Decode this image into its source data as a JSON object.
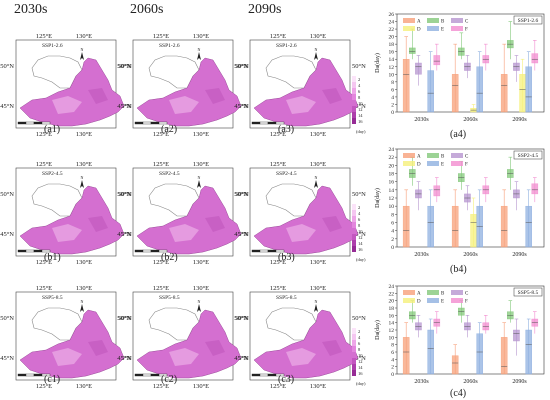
{
  "column_headers": [
    "2030s",
    "2060s",
    "2090s"
  ],
  "maps": {
    "lon_labels": [
      "125°E",
      "130°E"
    ],
    "lat_labels": [
      "50°N",
      "45°N"
    ],
    "north_symbol": "N",
    "legend_values": [
      "2",
      "4",
      "6",
      "8",
      "10",
      "12",
      "14",
      "16"
    ],
    "legend_unit": "(day)",
    "rows": [
      {
        "scenario": "SSP1-2.6",
        "captions": [
          "(a1)",
          "(a2)",
          "(a3)"
        ]
      },
      {
        "scenario": "SSP2-4.5",
        "captions": [
          "(b1)",
          "(b2)",
          "(b3)"
        ]
      },
      {
        "scenario": "SSP5-8.5",
        "captions": [
          "(c1)",
          "(c2)",
          "(c3)"
        ]
      }
    ]
  },
  "colors": {
    "A": "#f7a07a",
    "B": "#83c87a",
    "C": "#b695cf",
    "D": "#f5f07a",
    "E": "#8fb0e0",
    "F": "#f28ccf",
    "map_fill": "#d46fd0",
    "map_light": "#e9a6e4"
  },
  "chart_data": [
    {
      "type": "box",
      "caption": "(a4)",
      "scenario": "SSP1-2.6",
      "ylabel": "Da(day)",
      "ylim": [
        0,
        26
      ],
      "yticks": [
        0,
        2,
        4,
        6,
        8,
        10,
        12,
        14,
        16,
        18,
        20,
        22,
        24,
        26
      ],
      "categories": [
        "2030s",
        "2060s",
        "2090s"
      ],
      "legend_labels": [
        "A",
        "B",
        "C",
        "D",
        "E",
        "F"
      ],
      "series": [
        {
          "name": "A",
          "boxes": [
            [
              0,
              0,
              10,
              14,
              20
            ],
            [
              0,
              0,
              7,
              10,
              18
            ],
            [
              0,
              0,
              7,
              10,
              18
            ]
          ]
        },
        {
          "name": "B",
          "boxes": [
            [
              14,
              15.5,
              16,
              17,
              22
            ],
            [
              14,
              15,
              16,
              17,
              21
            ],
            [
              14,
              17,
              18,
              19,
              24
            ]
          ]
        },
        {
          "name": "C",
          "boxes": [
            [
              7,
              10,
              12,
              13,
              15
            ],
            [
              9,
              11,
              12,
              13,
              15
            ],
            [
              8,
              11,
              12,
              13,
              15
            ]
          ]
        },
        {
          "name": "D",
          "boxes": [
            [
              0,
              0,
              0,
              0,
              0
            ],
            [
              0,
              0,
              0.5,
              1,
              2
            ],
            [
              0,
              0,
              6,
              10,
              14
            ]
          ]
        },
        {
          "name": "E",
          "boxes": [
            [
              0,
              0,
              5,
              11,
              16
            ],
            [
              0,
              0,
              5,
              12,
              16
            ],
            [
              0,
              0,
              4,
              12,
              16
            ]
          ]
        },
        {
          "name": "F",
          "boxes": [
            [
              11,
              12.5,
              13.5,
              15,
              18
            ],
            [
              11,
              13,
              14,
              15,
              18
            ],
            [
              11,
              13,
              14,
              15.5,
              19
            ]
          ]
        }
      ]
    },
    {
      "type": "box",
      "caption": "(b4)",
      "scenario": "SSP2-4.5",
      "ylabel": "Da(day)",
      "ylim": [
        0,
        24
      ],
      "yticks": [
        0,
        2,
        4,
        6,
        8,
        10,
        12,
        14,
        16,
        18,
        20,
        22,
        24
      ],
      "categories": [
        "2030s",
        "2060s",
        "2090s"
      ],
      "legend_labels": [
        "A",
        "B",
        "C",
        "D",
        "E",
        "F"
      ],
      "series": [
        {
          "name": "A",
          "boxes": [
            [
              0,
              0,
              4,
              10,
              14
            ],
            [
              0,
              0,
              4,
              10,
              14
            ],
            [
              0,
              0,
              4,
              10,
              14
            ]
          ]
        },
        {
          "name": "B",
          "boxes": [
            [
              15,
              17,
              18,
              19,
              22
            ],
            [
              14,
              16,
              17,
              18,
              21
            ],
            [
              14,
              17,
              18,
              19,
              22
            ]
          ]
        },
        {
          "name": "C",
          "boxes": [
            [
              9,
              12,
              13,
              14,
              16
            ],
            [
              9,
              11,
              12,
              13,
              15
            ],
            [
              9,
              12,
              13,
              14,
              16
            ]
          ]
        },
        {
          "name": "D",
          "boxes": [
            [
              0,
              0,
              0,
              0,
              0
            ],
            [
              0,
              0,
              6,
              8,
              12
            ],
            [
              0,
              0,
              0,
              0,
              0
            ]
          ]
        },
        {
          "name": "E",
          "boxes": [
            [
              0,
              0,
              6,
              10,
              14
            ],
            [
              0,
              0,
              5,
              10,
              14
            ],
            [
              0,
              0,
              6,
              10,
              14
            ]
          ]
        },
        {
          "name": "F",
          "boxes": [
            [
              11,
              12.5,
              14,
              15,
              17
            ],
            [
              11,
              13,
              14,
              15,
              17
            ],
            [
              11,
              13,
              14,
              15.5,
              17
            ]
          ]
        }
      ]
    },
    {
      "type": "box",
      "caption": "(c4)",
      "scenario": "SSP5-8.5",
      "ylabel": "Da(day)",
      "ylim": [
        0,
        24
      ],
      "yticks": [
        0,
        2,
        4,
        6,
        8,
        10,
        12,
        14,
        16,
        18,
        20,
        22,
        24
      ],
      "categories": [
        "2030s",
        "2060s",
        "2090s"
      ],
      "legend_labels": [
        "A",
        "B",
        "C",
        "D",
        "E",
        "F"
      ],
      "series": [
        {
          "name": "A",
          "boxes": [
            [
              0,
              0,
              6,
              10,
              14
            ],
            [
              0,
              0,
              3,
              5,
              8
            ],
            [
              0,
              0,
              2,
              10,
              14
            ]
          ]
        },
        {
          "name": "B",
          "boxes": [
            [
              14,
              15,
              16,
              17,
              20
            ],
            [
              14,
              16,
              17,
              18,
              20
            ],
            [
              14,
              15,
              16,
              17,
              20
            ]
          ]
        },
        {
          "name": "C",
          "boxes": [
            [
              10,
              12,
              13,
              14,
              16
            ],
            [
              10,
              12,
              13,
              14,
              16
            ],
            [
              5,
              9,
              11,
              12,
              15
            ]
          ]
        },
        {
          "name": "D",
          "boxes": [
            [
              0,
              0,
              0,
              0,
              0
            ],
            [
              0,
              0,
              0,
              0,
              0
            ],
            [
              0,
              0,
              0,
              0,
              0
            ]
          ]
        },
        {
          "name": "E",
          "boxes": [
            [
              0,
              0,
              7,
              12,
              15
            ],
            [
              0,
              0,
              6,
              11,
              14
            ],
            [
              0,
              0,
              8,
              12,
              15
            ]
          ]
        },
        {
          "name": "F",
          "boxes": [
            [
              11,
              13,
              14,
              15,
              17
            ],
            [
              11,
              12,
              13,
              14,
              16
            ],
            [
              11,
              13,
              14,
              15,
              17
            ]
          ]
        }
      ]
    }
  ]
}
